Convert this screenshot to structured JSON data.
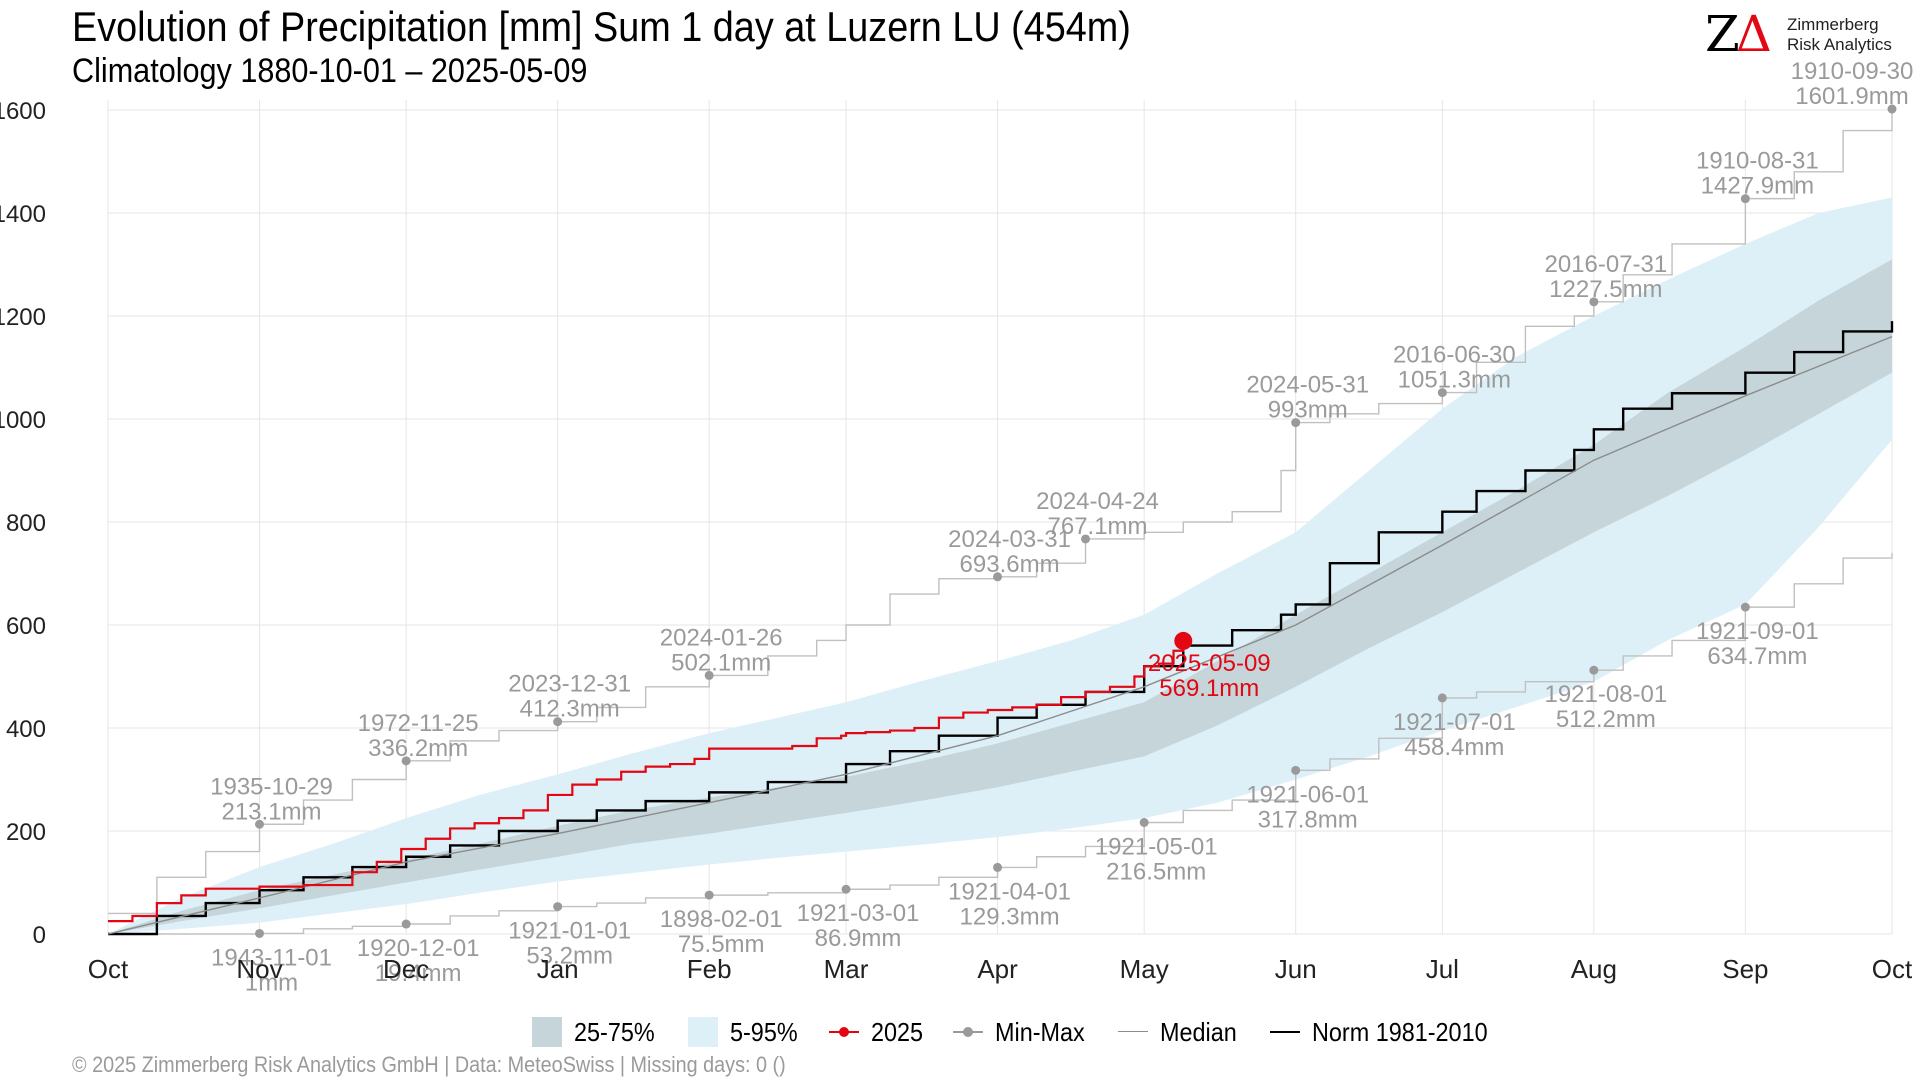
{
  "header": {
    "title": "Evolution of Precipitation [mm] Sum 1 day at Luzern  LU (454m)",
    "subtitle": "Climatology 1880-10-01 – 2025-05-09"
  },
  "logo": {
    "mark_z": "Z",
    "mark_delta": "Δ",
    "line1": "Zimmerberg",
    "line2": "Risk Analytics"
  },
  "caption": "©  2025 Zimmerberg Risk Analytics GmbH | Data: MeteoSwiss | Missing days: 0 ()",
  "colors": {
    "band_25_75": "#c5d5da",
    "band_5_95": "#ddf0f8",
    "current_year": "#e30613",
    "min_max": "#9a9a9a",
    "median": "#8c8c8c",
    "norm": "#000000"
  },
  "legend": [
    {
      "key": "band1",
      "label": "25-75%"
    },
    {
      "key": "band2",
      "label": "5-95%"
    },
    {
      "key": "red",
      "label": "2025"
    },
    {
      "key": "minmax",
      "label": "Min-Max"
    },
    {
      "key": "median",
      "label": "Median"
    },
    {
      "key": "norm",
      "label": "Norm 1981-2010"
    }
  ],
  "chart_data": {
    "type": "line",
    "x_unit": "day of hydrological year (Oct 1 = 0)",
    "x_range": [
      0,
      365
    ],
    "ylim": [
      0,
      1600
    ],
    "y_ticks": [
      0,
      200,
      400,
      600,
      800,
      1000,
      1200,
      1400,
      1600
    ],
    "x_ticks": [
      {
        "label": "Oct",
        "day": 0
      },
      {
        "label": "Nov",
        "day": 31
      },
      {
        "label": "Dec",
        "day": 61
      },
      {
        "label": "Jan",
        "day": 92
      },
      {
        "label": "Feb",
        "day": 123
      },
      {
        "label": "Mar",
        "day": 151
      },
      {
        "label": "Apr",
        "day": 182
      },
      {
        "label": "May",
        "day": 212
      },
      {
        "label": "Jun",
        "day": 243
      },
      {
        "label": "Jul",
        "day": 273
      },
      {
        "label": "Aug",
        "day": 304
      },
      {
        "label": "Sep",
        "day": 335
      },
      {
        "label": "Oct",
        "day": 365
      }
    ],
    "grid": true,
    "legend_position": "bottom",
    "bands": {
      "x": [
        0,
        15,
        31,
        46,
        61,
        76,
        92,
        107,
        123,
        137,
        151,
        166,
        182,
        197,
        212,
        227,
        243,
        258,
        273,
        288,
        304,
        319,
        335,
        350,
        365
      ],
      "p05": [
        0,
        10,
        22,
        40,
        58,
        80,
        102,
        118,
        135,
        148,
        160,
        173,
        188,
        205,
        225,
        255,
        300,
        345,
        395,
        440,
        490,
        570,
        640,
        790,
        960
      ],
      "p25": [
        0,
        25,
        50,
        75,
        100,
        125,
        150,
        175,
        195,
        215,
        235,
        258,
        285,
        315,
        345,
        405,
        480,
        555,
        625,
        700,
        780,
        850,
        930,
        1010,
        1090
      ],
      "p75": [
        0,
        45,
        85,
        115,
        145,
        175,
        210,
        240,
        265,
        285,
        305,
        335,
        370,
        410,
        450,
        530,
        620,
        700,
        780,
        860,
        950,
        1050,
        1140,
        1230,
        1310
      ],
      "p95": [
        0,
        70,
        130,
        175,
        225,
        270,
        310,
        350,
        390,
        420,
        450,
        490,
        530,
        570,
        620,
        700,
        780,
        900,
        1020,
        1120,
        1200,
        1270,
        1340,
        1400,
        1430
      ]
    },
    "series": [
      {
        "name": "Norm 1981-2010",
        "x": [
          0,
          10,
          20,
          31,
          40,
          50,
          61,
          70,
          80,
          92,
          100,
          110,
          123,
          135,
          151,
          160,
          170,
          182,
          190,
          200,
          212,
          220,
          230,
          240,
          243,
          250,
          260,
          273,
          280,
          290,
          300,
          304,
          310,
          320,
          335,
          345,
          355,
          365
        ],
        "y": [
          0,
          35,
          60,
          85,
          110,
          130,
          150,
          172,
          200,
          220,
          240,
          258,
          275,
          295,
          330,
          355,
          385,
          420,
          445,
          470,
          520,
          560,
          590,
          620,
          640,
          720,
          780,
          820,
          860,
          900,
          940,
          980,
          1020,
          1050,
          1090,
          1130,
          1170,
          1190
        ]
      },
      {
        "name": "Median",
        "x": [
          0,
          31,
          61,
          92,
          123,
          151,
          182,
          212,
          243,
          273,
          304,
          335,
          365
        ],
        "y": [
          0,
          70,
          140,
          195,
          255,
          310,
          385,
          480,
          600,
          755,
          920,
          1045,
          1160
        ]
      },
      {
        "name": "2025",
        "x": [
          0,
          5,
          10,
          15,
          20,
          31,
          40,
          50,
          55,
          60,
          65,
          70,
          75,
          80,
          85,
          90,
          95,
          100,
          105,
          110,
          115,
          120,
          123,
          128,
          135,
          140,
          145,
          150,
          151,
          155,
          160,
          165,
          170,
          175,
          180,
          185,
          190,
          195,
          200,
          205,
          210,
          212,
          215,
          218,
          220
        ],
        "y": [
          25,
          35,
          60,
          75,
          88,
          92,
          95,
          120,
          140,
          165,
          185,
          205,
          215,
          225,
          240,
          270,
          290,
          300,
          315,
          325,
          330,
          340,
          360,
          360,
          360,
          365,
          380,
          385,
          390,
          392,
          395,
          400,
          420,
          430,
          435,
          440,
          445,
          460,
          470,
          480,
          500,
          520,
          525,
          550,
          569.1
        ]
      }
    ],
    "current": {
      "label_date": "2025-05-09",
      "label_value": "569.1mm",
      "day": 220,
      "value": 569.1
    },
    "max_line": {
      "x": [
        0,
        10,
        20,
        31,
        40,
        50,
        61,
        70,
        80,
        92,
        100,
        110,
        123,
        135,
        145,
        151,
        160,
        170,
        182,
        190,
        200,
        212,
        220,
        230,
        240,
        243,
        250,
        260,
        273,
        280,
        290,
        300,
        304,
        310,
        320,
        335,
        345,
        355,
        365
      ],
      "y": [
        40,
        110,
        160,
        213.1,
        260,
        300,
        336.2,
        375,
        395,
        412.3,
        440,
        480,
        502.1,
        540,
        570,
        600,
        660,
        690,
        693.6,
        720,
        767.1,
        780,
        800,
        820,
        900,
        993,
        1010,
        1030,
        1051.3,
        1110,
        1180,
        1200,
        1227.5,
        1280,
        1340,
        1427.9,
        1480,
        1560,
        1601.9
      ]
    },
    "min_line": {
      "x": [
        0,
        10,
        20,
        31,
        40,
        50,
        61,
        70,
        80,
        92,
        100,
        110,
        123,
        135,
        151,
        160,
        170,
        182,
        190,
        200,
        212,
        220,
        230,
        243,
        250,
        260,
        273,
        280,
        290,
        304,
        310,
        320,
        335,
        345,
        355,
        365
      ],
      "y": [
        0,
        0,
        0,
        1,
        10,
        15,
        19.4,
        35,
        45,
        53.2,
        60,
        70,
        75.5,
        80,
        86.9,
        95,
        110,
        129.3,
        150,
        170,
        216.5,
        240,
        260,
        317.8,
        340,
        380,
        458.4,
        470,
        490,
        512.2,
        540,
        570,
        634.7,
        680,
        730,
        740
      ]
    },
    "annotations": [
      {
        "kind": "max",
        "date": "1935-10-29",
        "value": "213.1mm",
        "day": 31,
        "y": 213.1
      },
      {
        "kind": "max",
        "date": "1972-11-25",
        "value": "336.2mm",
        "day": 61,
        "y": 336.2
      },
      {
        "kind": "max",
        "date": "2023-12-31",
        "value": "412.3mm",
        "day": 92,
        "y": 412.3
      },
      {
        "kind": "max",
        "date": "2024-01-26",
        "value": "502.1mm",
        "day": 123,
        "y": 502.1
      },
      {
        "kind": "max",
        "date": "2024-03-31",
        "value": "693.6mm",
        "day": 182,
        "y": 693.6
      },
      {
        "kind": "max",
        "date": "2024-04-24",
        "value": "767.1mm",
        "day": 200,
        "y": 767.1
      },
      {
        "kind": "max",
        "date": "2024-05-31",
        "value": "993mm",
        "day": 243,
        "y": 993
      },
      {
        "kind": "max",
        "date": "2016-06-30",
        "value": "1051.3mm",
        "day": 273,
        "y": 1051.3
      },
      {
        "kind": "max",
        "date": "2016-07-31",
        "value": "1227.5mm",
        "day": 304,
        "y": 1227.5
      },
      {
        "kind": "max",
        "date": "1910-08-31",
        "value": "1427.9mm",
        "day": 335,
        "y": 1427.9
      },
      {
        "kind": "max",
        "date": "1910-09-30",
        "value": "1601.9mm",
        "day": 365,
        "y": 1601.9
      },
      {
        "kind": "min",
        "date": "1943-11-01",
        "value": "1mm",
        "day": 31,
        "y": 1
      },
      {
        "kind": "min",
        "date": "1920-12-01",
        "value": "19.4mm",
        "day": 61,
        "y": 19.4
      },
      {
        "kind": "min",
        "date": "1921-01-01",
        "value": "53.2mm",
        "day": 92,
        "y": 53.2
      },
      {
        "kind": "min",
        "date": "1898-02-01",
        "value": "75.5mm",
        "day": 123,
        "y": 75.5
      },
      {
        "kind": "min",
        "date": "1921-03-01",
        "value": "86.9mm",
        "day": 151,
        "y": 86.9
      },
      {
        "kind": "min",
        "date": "1921-04-01",
        "value": "129.3mm",
        "day": 182,
        "y": 129.3
      },
      {
        "kind": "min",
        "date": "1921-05-01",
        "value": "216.5mm",
        "day": 212,
        "y": 216.5
      },
      {
        "kind": "min",
        "date": "1921-06-01",
        "value": "317.8mm",
        "day": 243,
        "y": 317.8
      },
      {
        "kind": "min",
        "date": "1921-07-01",
        "value": "458.4mm",
        "day": 273,
        "y": 458.4
      },
      {
        "kind": "min",
        "date": "1921-08-01",
        "value": "512.2mm",
        "day": 304,
        "y": 512.2
      },
      {
        "kind": "min",
        "date": "1921-09-01",
        "value": "634.7mm",
        "day": 335,
        "y": 634.7
      }
    ]
  }
}
